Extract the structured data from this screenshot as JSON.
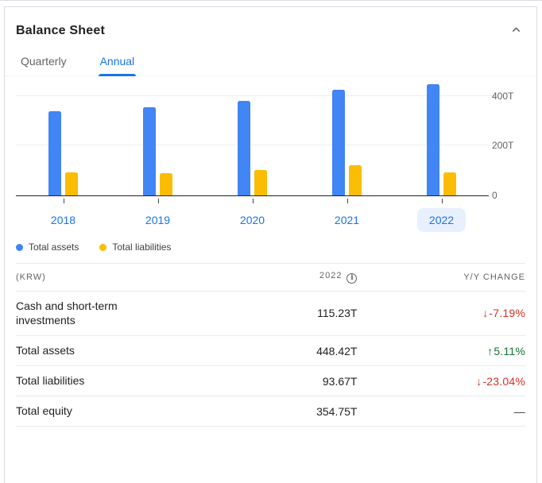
{
  "card": {
    "title": "Balance Sheet",
    "collapse_icon": "chevron-up-icon"
  },
  "tabs": [
    {
      "label": "Quarterly",
      "active": false
    },
    {
      "label": "Annual",
      "active": true
    }
  ],
  "chart_data": {
    "type": "bar",
    "categories": [
      "2018",
      "2019",
      "2020",
      "2021",
      "2022"
    ],
    "series": [
      {
        "name": "Total assets",
        "color": "#4285f4",
        "values": [
          340,
          355,
          380,
          427,
          448.42
        ]
      },
      {
        "name": "Total liabilities",
        "color": "#fbbc04",
        "values": [
          92,
          90,
          102,
          122,
          93.67
        ]
      }
    ],
    "selected_category": "2022",
    "y_ticks": [
      {
        "label": "400T",
        "value": 400
      },
      {
        "label": "200T",
        "value": 200
      },
      {
        "label": "0",
        "value": 0
      }
    ],
    "ylim": [
      0,
      480
    ],
    "unit": "T",
    "grid": true,
    "legend_position": "bottom-left"
  },
  "table": {
    "columns": {
      "label": "(KRW)",
      "period": "2022",
      "change": "Y/Y CHANGE"
    },
    "info_icon_glyph": "i",
    "rows": [
      {
        "label": "Cash and short-term investments",
        "value": "115.23T",
        "change": "-7.19%",
        "direction": "down"
      },
      {
        "label": "Total assets",
        "value": "448.42T",
        "change": "5.11%",
        "direction": "up"
      },
      {
        "label": "Total liabilities",
        "value": "93.67T",
        "change": "-23.04%",
        "direction": "down"
      },
      {
        "label": "Total equity",
        "value": "354.75T",
        "change": "—",
        "direction": "flat"
      }
    ]
  },
  "colors": {
    "accent_blue": "#1a73e8",
    "bar_blue": "#4285f4",
    "bar_yellow": "#fbbc04",
    "negative_red": "#d93025",
    "positive_green": "#137333",
    "selected_pill_bg": "#e8f0fe",
    "text_dark": "#202124",
    "text_gray": "#5f6368",
    "border": "#dadce0"
  },
  "glyphs": {
    "up_arrow": "↑",
    "down_arrow": "↓"
  }
}
